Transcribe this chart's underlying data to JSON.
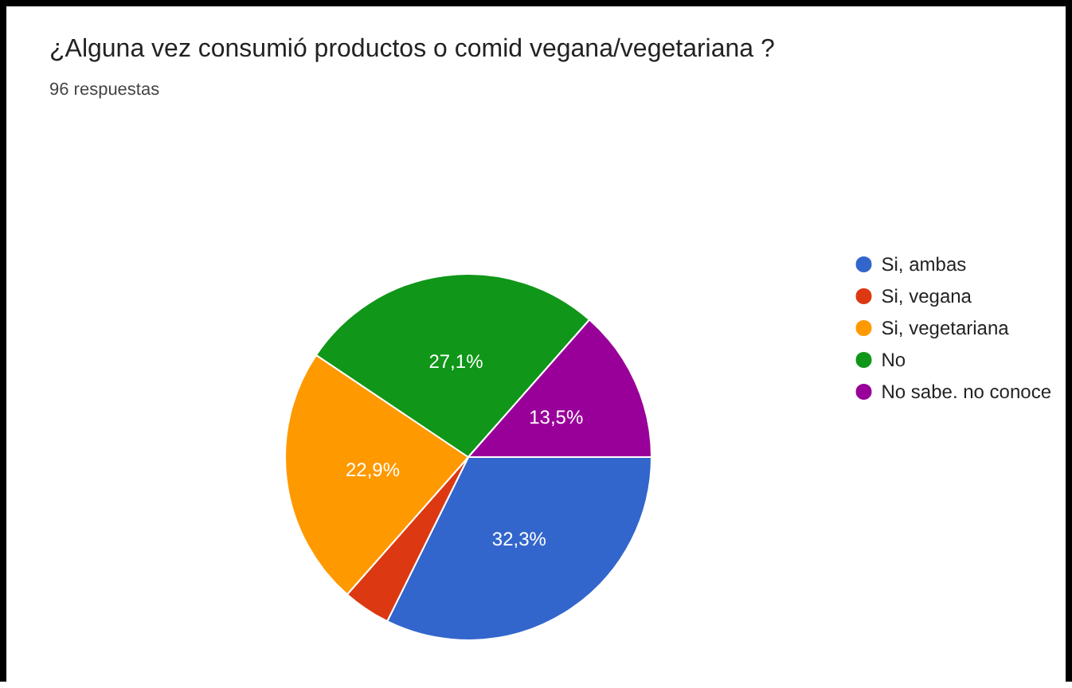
{
  "chart_data": {
    "type": "pie",
    "title": "¿Alguna vez consumió productos o comid vegana/vegetariana ?",
    "subtitle": "96 respuestas",
    "categories": [
      "Si, ambas",
      "Si, vegana",
      "Si, vegetariana",
      "No",
      "No sabe. no conoce"
    ],
    "values": [
      32.3,
      4.2,
      22.9,
      27.1,
      13.5
    ],
    "colors": [
      "#3366cc",
      "#dc3912",
      "#ff9900",
      "#109618",
      "#990099"
    ],
    "value_labels": [
      "32,3%",
      null,
      "22,9%",
      "27,1%",
      "13,5%"
    ],
    "legend": "right"
  }
}
